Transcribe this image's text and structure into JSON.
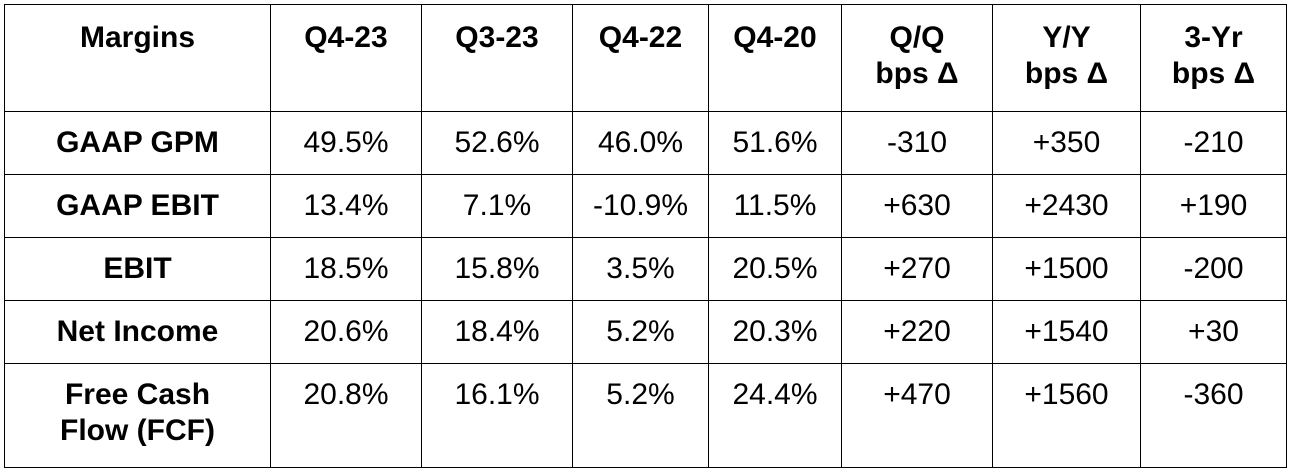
{
  "table": {
    "headers": [
      "Margins",
      "Q4-23",
      "Q3-23",
      "Q4-22",
      "Q4-20",
      "Q/Q\nbps Δ",
      "Y/Y\nbps Δ",
      "3-Yr\nbps Δ"
    ],
    "rows": [
      [
        "GAAP GPM",
        "49.5%",
        "52.6%",
        "46.0%",
        "51.6%",
        "-310",
        "+350",
        "-210"
      ],
      [
        "GAAP EBIT",
        "13.4%",
        "7.1%",
        "-10.9%",
        "11.5%",
        "+630",
        "+2430",
        "+190"
      ],
      [
        "EBIT",
        "18.5%",
        "15.8%",
        "3.5%",
        "20.5%",
        "+270",
        "+1500",
        "-200"
      ],
      [
        "Net Income",
        "20.6%",
        "18.4%",
        "5.2%",
        "20.3%",
        "+220",
        "+1540",
        "+30"
      ],
      [
        "Free Cash Flow (FCF)",
        "20.8%",
        "16.1%",
        "5.2%",
        "24.4%",
        "+470",
        "+1560",
        "-360"
      ]
    ]
  }
}
